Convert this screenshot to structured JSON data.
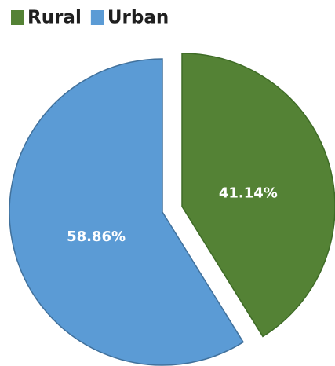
{
  "chart_data": {
    "type": "pie",
    "series": [
      {
        "name": "Rural",
        "color": "#548235",
        "values": [
          41.14
        ],
        "value_labels": [
          "41.14%"
        ]
      },
      {
        "name": "Urban",
        "color": "#5b9bd5",
        "values": [
          58.86
        ],
        "value_labels": [
          "58.86%"
        ]
      }
    ]
  }
}
